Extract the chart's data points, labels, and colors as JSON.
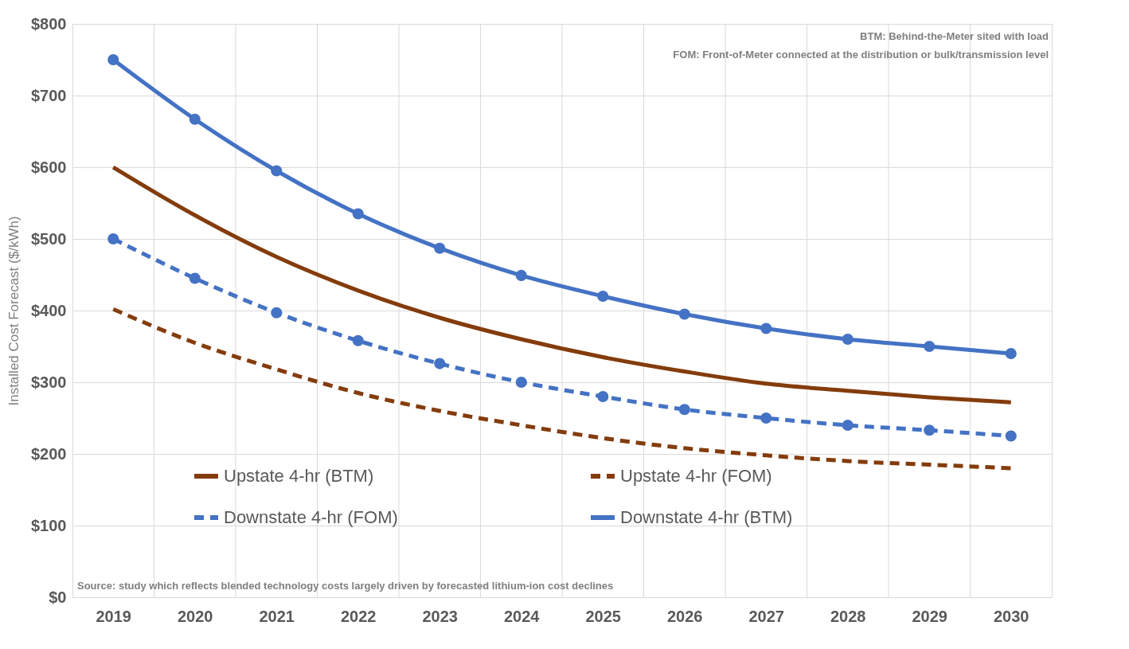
{
  "chart_data": {
    "type": "line",
    "ylabel": "Installed Cost Forecast ($/kWh)",
    "categories": [
      "2019",
      "2020",
      "2021",
      "2022",
      "2023",
      "2024",
      "2025",
      "2026",
      "2027",
      "2028",
      "2029",
      "2030"
    ],
    "series": [
      {
        "name": "Upstate 4-hr (BTM)",
        "color": "#843c0c",
        "line_style": "solid",
        "marker": "none",
        "values": [
          600,
          533,
          475,
          428,
          390,
          360,
          335,
          315,
          298,
          288,
          279,
          272
        ]
      },
      {
        "name": "Upstate 4-hr (FOM)",
        "color": "#843c0c",
        "line_style": "dashed",
        "marker": "none",
        "values": [
          402,
          355,
          318,
          285,
          260,
          240,
          222,
          208,
          198,
          190,
          185,
          180
        ]
      },
      {
        "name": "Downstate 4-hr (FOM)",
        "color": "#4472c4",
        "line_style": "dashed",
        "marker": "circle",
        "values": [
          500,
          445,
          397,
          358,
          326,
          300,
          280,
          262,
          250,
          240,
          233,
          225
        ]
      },
      {
        "name": "Downstate 4-hr (BTM)",
        "color": "#4472c4",
        "line_style": "solid",
        "marker": "circle",
        "values": [
          750,
          667,
          595,
          535,
          487,
          449,
          420,
          395,
          375,
          360,
          350,
          340
        ]
      }
    ],
    "ylim": [
      0,
      800
    ],
    "yticks": [
      {
        "value": 0,
        "label": "$0"
      },
      {
        "value": 100,
        "label": "$100"
      },
      {
        "value": 200,
        "label": "$200"
      },
      {
        "value": 300,
        "label": "$300"
      },
      {
        "value": 400,
        "label": "$400"
      },
      {
        "value": 500,
        "label": "$500"
      },
      {
        "value": 600,
        "label": "$600"
      },
      {
        "value": 700,
        "label": "$700"
      },
      {
        "value": 800,
        "label": "$800"
      }
    ],
    "grid": true,
    "legend": "bottom",
    "annotations": [
      "BTM: Behind-the-Meter sited with load",
      "FOM: Front-of-Meter connected at the distribution or bulk/transmission level",
      "Source: study which reflects blended technology costs largely driven by forecasted lithium-ion cost declines"
    ]
  }
}
